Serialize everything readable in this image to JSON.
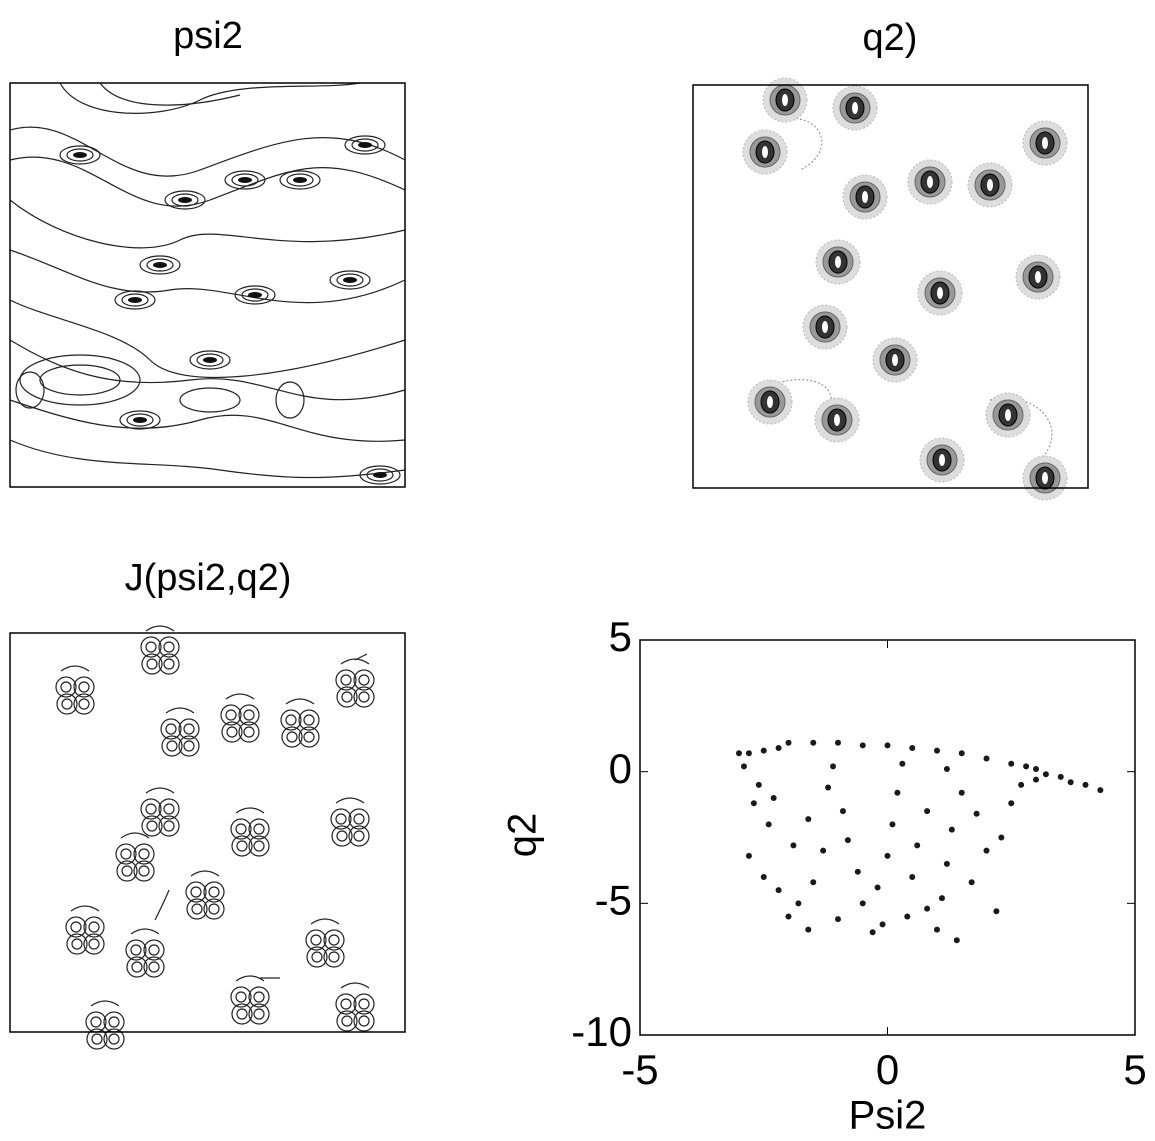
{
  "chart_data": [
    {
      "type": "contour",
      "title": "psi2"
    },
    {
      "type": "contour",
      "title": "q2)"
    },
    {
      "type": "contour",
      "title": "J(psi2,q2)"
    },
    {
      "type": "scatter",
      "xlabel": "Psi2",
      "ylabel": "q2",
      "color": "#1a1a1a",
      "xlim": [
        -5,
        5
      ],
      "ylim": [
        -10,
        5
      ],
      "xticks": [
        -5,
        0,
        5
      ],
      "yticks": [
        -10,
        -5,
        0,
        5
      ],
      "x": [
        -3,
        -2.8,
        -2.5,
        -2.2,
        -2,
        -1.5,
        -1,
        -0.5,
        0,
        0.5,
        1,
        1.5,
        2,
        2.5,
        3,
        3.5,
        4,
        4.3,
        3.7,
        2.8,
        -2.9,
        -2.6,
        -2.7,
        -2.4,
        -2.8,
        -2.5,
        -2.2,
        -2,
        -1.8,
        -1.6,
        -1.5,
        -1.3,
        -1.6,
        -1.2,
        -0.9,
        -0.8,
        -0.6,
        -0.5,
        -0.3,
        -0.2,
        0,
        0.1,
        0.2,
        0.4,
        0.5,
        0.6,
        0.8,
        1,
        1.1,
        1.2,
        1.3,
        1.4,
        1.5,
        1.7,
        1.8,
        2,
        2.2,
        2.3,
        2.5,
        2.7,
        3,
        3.2,
        -1,
        -0.1,
        0.8,
        -1.9,
        -2.3,
        -1.1,
        0.3,
        1.2
      ],
      "y": [
        0.7,
        0.7,
        0.8,
        0.9,
        1.1,
        1.1,
        1.1,
        1,
        1,
        0.9,
        0.8,
        0.7,
        0.5,
        0.3,
        0.1,
        -0.2,
        -0.5,
        -0.7,
        -0.4,
        0.2,
        0.2,
        -0.5,
        -1.2,
        -2,
        -3.2,
        -4,
        -4.5,
        -5.5,
        -5,
        -6,
        -4.2,
        -3,
        -1.8,
        -0.6,
        -1.5,
        -2.6,
        -3.8,
        -5,
        -6.1,
        -4.4,
        -3.2,
        -2,
        -0.8,
        -5.5,
        -4,
        -2.8,
        -1.5,
        -6,
        -4.8,
        -3.5,
        -2.2,
        -6.4,
        -0.8,
        -4.2,
        -1.6,
        -3,
        -5.3,
        -2.5,
        -1.2,
        -0.5,
        -0.3,
        -0.1,
        -5.6,
        -5.8,
        -5.2,
        -2.8,
        -1,
        0.2,
        0.3,
        0.1
      ]
    }
  ]
}
